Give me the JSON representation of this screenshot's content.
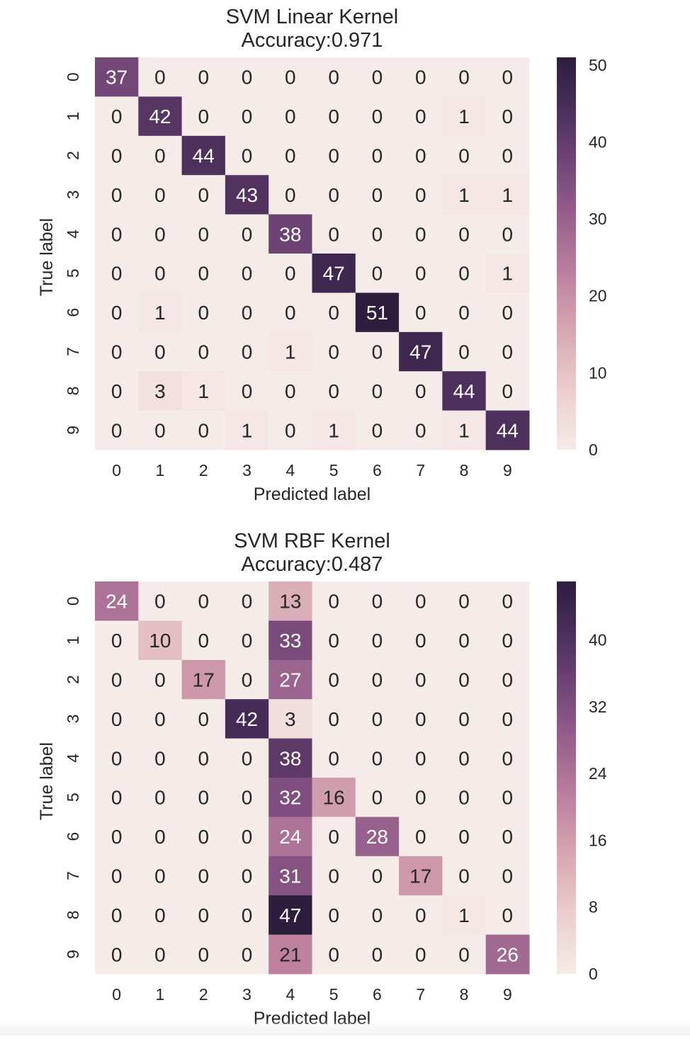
{
  "chart_data": [
    {
      "type": "heatmap",
      "title": "SVM Linear Kernel",
      "subtitle": "Accuracy:0.971",
      "xlabel": "Predicted label",
      "ylabel": "True label",
      "x_categories": [
        "0",
        "1",
        "2",
        "3",
        "4",
        "5",
        "6",
        "7",
        "8",
        "9"
      ],
      "y_categories": [
        "0",
        "1",
        "2",
        "3",
        "4",
        "5",
        "6",
        "7",
        "8",
        "9"
      ],
      "matrix": [
        [
          37,
          0,
          0,
          0,
          0,
          0,
          0,
          0,
          0,
          0
        ],
        [
          0,
          42,
          0,
          0,
          0,
          0,
          0,
          0,
          1,
          0
        ],
        [
          0,
          0,
          44,
          0,
          0,
          0,
          0,
          0,
          0,
          0
        ],
        [
          0,
          0,
          0,
          43,
          0,
          0,
          0,
          0,
          1,
          1
        ],
        [
          0,
          0,
          0,
          0,
          38,
          0,
          0,
          0,
          0,
          0
        ],
        [
          0,
          0,
          0,
          0,
          0,
          47,
          0,
          0,
          0,
          1
        ],
        [
          0,
          1,
          0,
          0,
          0,
          0,
          51,
          0,
          0,
          0
        ],
        [
          0,
          0,
          0,
          0,
          1,
          0,
          0,
          47,
          0,
          0
        ],
        [
          0,
          3,
          1,
          0,
          0,
          0,
          0,
          0,
          44,
          0
        ],
        [
          0,
          0,
          0,
          1,
          0,
          1,
          0,
          0,
          1,
          44
        ]
      ],
      "colorbar": {
        "vmin": 0,
        "vmax": 51,
        "ticks": [
          0,
          10,
          20,
          30,
          40,
          50
        ],
        "colormap": "cubehelix light (low #f5ebe8 → high #2d1e3e)"
      }
    },
    {
      "type": "heatmap",
      "title": "SVM RBF Kernel",
      "subtitle": "Accuracy:0.487",
      "xlabel": "Predicted label",
      "ylabel": "True label",
      "x_categories": [
        "0",
        "1",
        "2",
        "3",
        "4",
        "5",
        "6",
        "7",
        "8",
        "9"
      ],
      "y_categories": [
        "0",
        "1",
        "2",
        "3",
        "4",
        "5",
        "6",
        "7",
        "8",
        "9"
      ],
      "matrix": [
        [
          24,
          0,
          0,
          0,
          13,
          0,
          0,
          0,
          0,
          0
        ],
        [
          0,
          10,
          0,
          0,
          33,
          0,
          0,
          0,
          0,
          0
        ],
        [
          0,
          0,
          17,
          0,
          27,
          0,
          0,
          0,
          0,
          0
        ],
        [
          0,
          0,
          0,
          42,
          3,
          0,
          0,
          0,
          0,
          0
        ],
        [
          0,
          0,
          0,
          0,
          38,
          0,
          0,
          0,
          0,
          0
        ],
        [
          0,
          0,
          0,
          0,
          32,
          16,
          0,
          0,
          0,
          0
        ],
        [
          0,
          0,
          0,
          0,
          24,
          0,
          28,
          0,
          0,
          0
        ],
        [
          0,
          0,
          0,
          0,
          31,
          0,
          0,
          17,
          0,
          0
        ],
        [
          0,
          0,
          0,
          0,
          47,
          0,
          0,
          0,
          1,
          0
        ],
        [
          0,
          0,
          0,
          0,
          21,
          0,
          0,
          0,
          0,
          26
        ]
      ],
      "colorbar": {
        "vmin": 0,
        "vmax": 47,
        "ticks": [
          0,
          8,
          16,
          24,
          32,
          40
        ],
        "colormap": "cubehelix light (low #f5ebe8 → high #2d1e3e)"
      }
    }
  ],
  "colors": {
    "low": "#f5ebe8",
    "high": "#2d1e3e",
    "text_dark": "#262626",
    "text_light": "#ffffff"
  }
}
